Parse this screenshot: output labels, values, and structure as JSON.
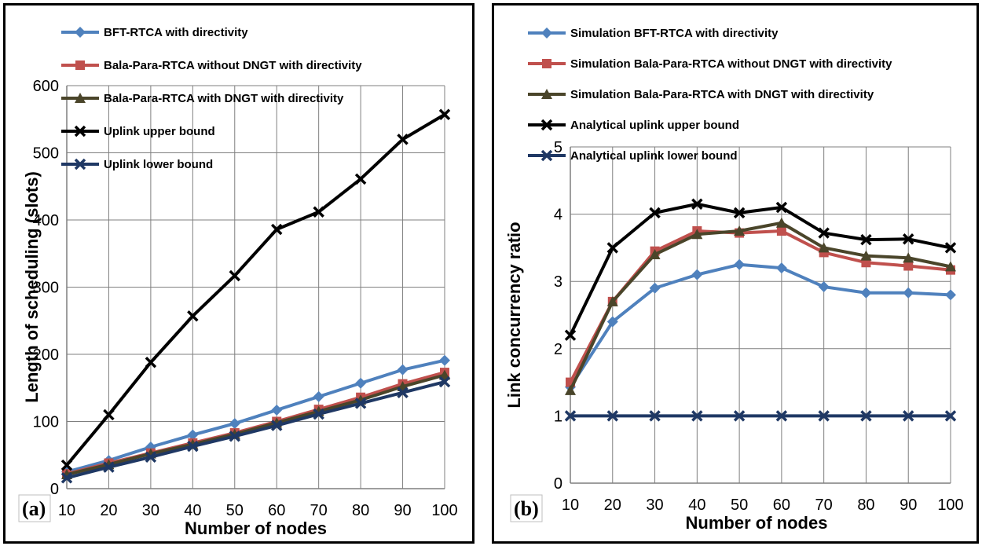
{
  "chart_data": [
    {
      "type": "line",
      "panel_label": "(a)",
      "xlabel": "Number of nodes",
      "ylabel": "Length of scheduling (slots)",
      "x": [
        10,
        20,
        30,
        40,
        50,
        60,
        70,
        80,
        90,
        100
      ],
      "xlim": [
        10,
        100
      ],
      "ylim": [
        0,
        600
      ],
      "yticks": [
        0,
        100,
        200,
        300,
        400,
        500,
        600
      ],
      "grid": true,
      "legend_position": "top-left",
      "series": [
        {
          "name": "BFT-RTCA with directivity",
          "color": "#4f81bd",
          "marker": "diamond",
          "values": [
            25,
            42,
            62,
            80,
            97,
            117,
            137,
            157,
            177,
            191
          ]
        },
        {
          "name": "Bala-Para-RTCA without DNGT with directivity",
          "color": "#c0504d",
          "marker": "square",
          "values": [
            22,
            38,
            53,
            68,
            83,
            100,
            118,
            136,
            156,
            173
          ]
        },
        {
          "name": "Bala-Para-RTCA with DNGT with directivity",
          "color": "#4a452a",
          "marker": "triangle",
          "values": [
            21,
            36,
            52,
            66,
            81,
            98,
            115,
            132,
            152,
            169
          ]
        },
        {
          "name": "Uplink upper bound",
          "color": "#000000",
          "marker": "x",
          "values": [
            35,
            110,
            188,
            257,
            317,
            386,
            412,
            461,
            520,
            557
          ]
        },
        {
          "name": "Uplink lower bound",
          "color": "#1f3864",
          "marker": "x",
          "values": [
            16,
            32,
            47,
            63,
            78,
            94,
            111,
            127,
            143,
            159
          ]
        }
      ]
    },
    {
      "type": "line",
      "panel_label": "(b)",
      "xlabel": "Number of nodes",
      "ylabel": "Link concurrency ratio",
      "x": [
        10,
        20,
        30,
        40,
        50,
        60,
        70,
        80,
        90,
        100
      ],
      "xlim": [
        10,
        100
      ],
      "ylim": [
        0,
        5
      ],
      "yticks": [
        0,
        1,
        2,
        3,
        4,
        5
      ],
      "grid": true,
      "legend_position": "top-left",
      "series": [
        {
          "name": "Simulation BFT-RTCA with directivity",
          "color": "#4f81bd",
          "marker": "diamond",
          "values": [
            1.43,
            2.4,
            2.9,
            3.1,
            3.25,
            3.2,
            2.92,
            2.83,
            2.83,
            2.8
          ]
        },
        {
          "name": "Simulation Bala-Para-RTCA without DNGT with directivity",
          "color": "#c0504d",
          "marker": "square",
          "values": [
            1.5,
            2.7,
            3.45,
            3.75,
            3.72,
            3.75,
            3.43,
            3.28,
            3.23,
            3.17
          ]
        },
        {
          "name": "Simulation Bala-Para-RTCA with DNGT with directivity",
          "color": "#4a452a",
          "marker": "triangle",
          "values": [
            1.38,
            2.7,
            3.4,
            3.7,
            3.75,
            3.87,
            3.5,
            3.38,
            3.35,
            3.22
          ]
        },
        {
          "name": "Analytical uplink upper bound",
          "color": "#000000",
          "marker": "x",
          "values": [
            2.2,
            3.5,
            4.02,
            4.15,
            4.02,
            4.1,
            3.72,
            3.62,
            3.63,
            3.5
          ]
        },
        {
          "name": "Analytical uplink lower bound",
          "color": "#1f3864",
          "marker": "x",
          "values": [
            1,
            1,
            1,
            1,
            1,
            1,
            1,
            1,
            1,
            1
          ]
        }
      ]
    }
  ]
}
